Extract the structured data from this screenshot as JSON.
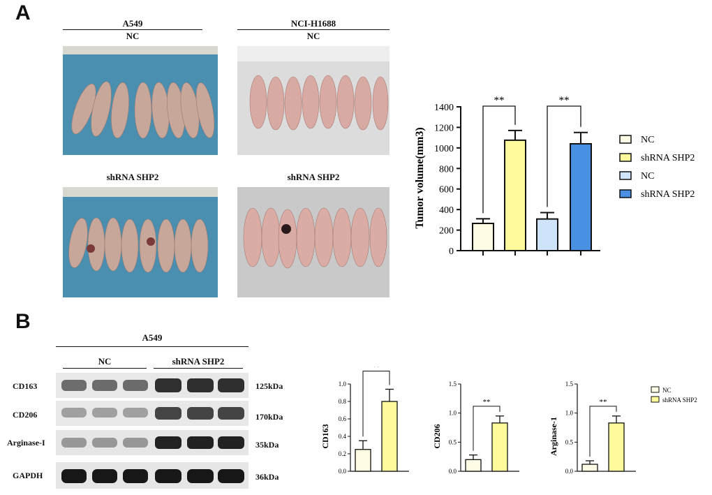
{
  "panels": {
    "a": "A",
    "b": "B"
  },
  "panel_a": {
    "cell_lines": [
      "A549",
      "NCI-H1688"
    ],
    "row_labels": [
      "NC",
      "shRNA SHP2"
    ]
  },
  "panel_b": {
    "cell_line": "A549",
    "groups": [
      "NC",
      "shRNA SHP2"
    ],
    "bands": [
      {
        "name": "CD163",
        "kda": "125kDa"
      },
      {
        "name": "CD206",
        "kda": "170kDa"
      },
      {
        "name": "Arginase-I",
        "kda": "35kDa"
      },
      {
        "name": "GAPDH",
        "kda": "36kDa"
      }
    ]
  },
  "colors": {
    "nc_a549": "#fffde6",
    "shrna_a549": "#fdfb9c",
    "nc_h1688": "#cfe3fb",
    "shrna_h1688": "#4a90e2"
  },
  "chart_data": [
    {
      "type": "bar",
      "ylabel": "Tumor volume(mm3)",
      "categories": [
        "NC",
        "shRNA SHP2",
        "NC",
        "shRNA SHP2"
      ],
      "values": [
        265,
        1075,
        308,
        1040
      ],
      "errors": [
        45,
        95,
        62,
        110
      ],
      "ylim": [
        0,
        1400
      ],
      "yticks": [
        0,
        200,
        400,
        600,
        800,
        1000,
        1200,
        1400
      ],
      "legend": [
        "NC",
        "shRNA SHP2",
        "NC",
        "shRNA SHP2"
      ],
      "significance": [
        "**",
        "**"
      ]
    },
    {
      "type": "bar",
      "ylabel": "CD163",
      "categories": [
        "NC",
        "shRNA SHP2"
      ],
      "values": [
        0.25,
        0.8
      ],
      "errors": [
        0.1,
        0.14
      ],
      "ylim": [
        0,
        1.0
      ],
      "yticks": [
        "0.0",
        "0.2",
        "0.4",
        "0.6",
        "0.8",
        "1.0"
      ],
      "significance": [
        "**"
      ]
    },
    {
      "type": "bar",
      "ylabel": "CD206",
      "categories": [
        "NC",
        "shRNA SHP2"
      ],
      "values": [
        0.2,
        0.83
      ],
      "errors": [
        0.08,
        0.12
      ],
      "ylim": [
        0,
        1.5
      ],
      "yticks": [
        "0.0",
        "0.5",
        "1.0",
        "1.5"
      ],
      "significance": [
        "**"
      ]
    },
    {
      "type": "bar",
      "ylabel": "Arginase-1",
      "categories": [
        "NC",
        "shRNA SHP2"
      ],
      "values": [
        0.12,
        0.83
      ],
      "errors": [
        0.06,
        0.12
      ],
      "ylim": [
        0,
        1.5
      ],
      "yticks": [
        "0.0",
        "0.5",
        "1.0",
        "1.5"
      ],
      "significance": [
        "**"
      ],
      "legend": [
        "NC",
        "shRNA SHP2"
      ]
    }
  ]
}
